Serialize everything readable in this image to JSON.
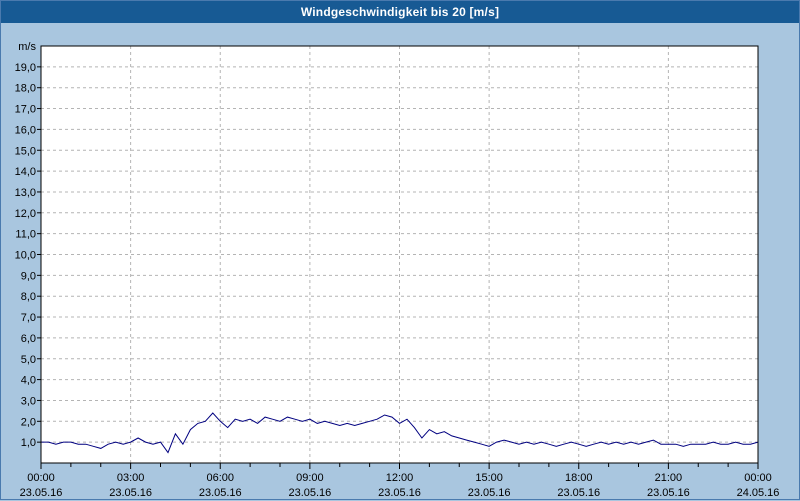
{
  "window": {
    "title": "Windgeschwindigkeit bis 20 [m/s]"
  },
  "colors": {
    "titlebar_bg": "#175a94",
    "titlebar_text": "#ffffff",
    "page_bg": "#a9c6df",
    "plot_bg": "#ffffff",
    "grid": "#b4b4b4",
    "axis": "#000000",
    "series_line": "#000080"
  },
  "chart_data": {
    "type": "line",
    "title": "Windgeschwindigkeit bis 20 [m/s]",
    "ylabel": "m/s",
    "ylim": [
      0,
      20
    ],
    "xlim_hours": [
      0,
      24
    ],
    "grid": {
      "horizontal_step": 1,
      "vertical_step_hours": 3,
      "style": "dashed"
    },
    "y_ticks": [
      {
        "value": 19,
        "label": "19,0"
      },
      {
        "value": 18,
        "label": "18,0"
      },
      {
        "value": 17,
        "label": "17,0"
      },
      {
        "value": 16,
        "label": "16,0"
      },
      {
        "value": 15,
        "label": "15,0"
      },
      {
        "value": 14,
        "label": "14,0"
      },
      {
        "value": 13,
        "label": "13,0"
      },
      {
        "value": 12,
        "label": "12,0"
      },
      {
        "value": 11,
        "label": "11,0"
      },
      {
        "value": 10,
        "label": "10,0"
      },
      {
        "value": 9,
        "label": "9,0"
      },
      {
        "value": 8,
        "label": "8,0"
      },
      {
        "value": 7,
        "label": "7,0"
      },
      {
        "value": 6,
        "label": "6,0"
      },
      {
        "value": 5,
        "label": "5,0"
      },
      {
        "value": 4,
        "label": "4,0"
      },
      {
        "value": 3,
        "label": "3,0"
      },
      {
        "value": 2,
        "label": "2,0"
      },
      {
        "value": 1,
        "label": "1,0"
      }
    ],
    "x_ticks": [
      {
        "hour": 0,
        "time": "00:00",
        "date": "23.05.16"
      },
      {
        "hour": 3,
        "time": "03:00",
        "date": "23.05.16"
      },
      {
        "hour": 6,
        "time": "06:00",
        "date": "23.05.16"
      },
      {
        "hour": 9,
        "time": "09:00",
        "date": "23.05.16"
      },
      {
        "hour": 12,
        "time": "12:00",
        "date": "23.05.16"
      },
      {
        "hour": 15,
        "time": "15:00",
        "date": "23.05.16"
      },
      {
        "hour": 18,
        "time": "18:00",
        "date": "23.05.16"
      },
      {
        "hour": 21,
        "time": "21:00",
        "date": "23.05.16"
      },
      {
        "hour": 24,
        "time": "00:00",
        "date": "24.05.16"
      }
    ],
    "series": [
      {
        "name": "Windgeschwindigkeit",
        "color": "#000080",
        "x_start_hours": 0,
        "x_step_hours": 0.25,
        "values": [
          1.0,
          1.0,
          0.9,
          1.0,
          1.0,
          0.9,
          0.9,
          0.8,
          0.7,
          0.9,
          1.0,
          0.9,
          1.0,
          1.2,
          1.0,
          0.9,
          1.0,
          0.5,
          1.4,
          0.9,
          1.6,
          1.9,
          2.0,
          2.4,
          2.0,
          1.7,
          2.1,
          2.0,
          2.1,
          1.9,
          2.2,
          2.1,
          2.0,
          2.2,
          2.1,
          2.0,
          2.1,
          1.9,
          2.0,
          1.9,
          1.8,
          1.9,
          1.8,
          1.9,
          2.0,
          2.1,
          2.3,
          2.2,
          1.9,
          2.1,
          1.7,
          1.2,
          1.6,
          1.4,
          1.5,
          1.3,
          1.2,
          1.1,
          1.0,
          0.9,
          0.8,
          1.0,
          1.1,
          1.0,
          0.9,
          1.0,
          0.9,
          1.0,
          0.9,
          0.8,
          0.9,
          1.0,
          0.9,
          0.8,
          0.9,
          1.0,
          0.9,
          1.0,
          0.9,
          1.0,
          0.9,
          1.0,
          1.1,
          0.9,
          0.9,
          0.9,
          0.8,
          0.9,
          0.9,
          0.9,
          1.0,
          0.9,
          0.9,
          1.0,
          0.9,
          0.9,
          1.0
        ]
      }
    ]
  }
}
